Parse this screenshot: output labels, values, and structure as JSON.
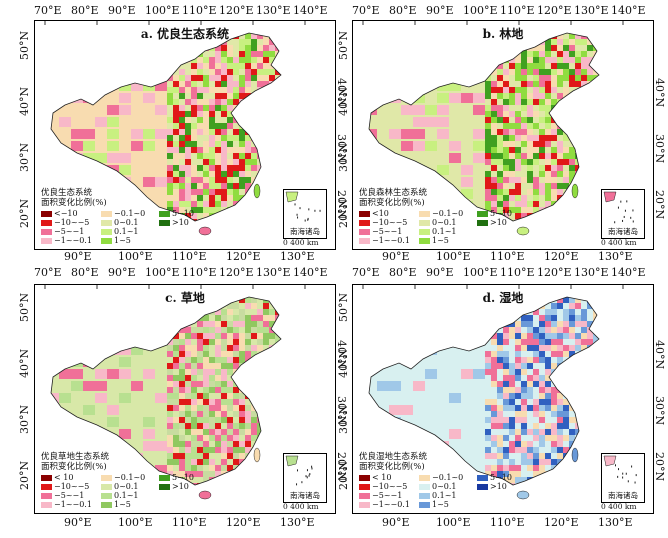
{
  "axes": {
    "top_lon": [
      "70°E",
      "80°E",
      "90°E",
      "100°E",
      "110°E",
      "120°E",
      "130°E",
      "140°E"
    ],
    "bottom_lon": [
      "90°E",
      "100°E",
      "110°E",
      "120°E",
      "130°E"
    ],
    "lat_left": [
      "50°N",
      "40°N",
      "30°N",
      "20°N"
    ],
    "lat_right": [
      "40°N",
      "30°N",
      "20°N"
    ]
  },
  "inset": {
    "label": "南海诸岛",
    "scale": "0  400 km"
  },
  "panels": [
    {
      "title": "a. 优良生态系统",
      "legend_title": [
        "优良生态系统",
        "面积变化比例(%)"
      ],
      "legend_items": [
        {
          "label": "<−10",
          "color": "#8b0000"
        },
        {
          "label": "−10~−5",
          "color": "#e01818"
        },
        {
          "label": "−5~−1",
          "color": "#f07098"
        },
        {
          "label": "−1~−0.1",
          "color": "#f8b8c8"
        },
        {
          "label": "−0.1~0",
          "color": "#f8dcb0"
        },
        {
          "label": "0~0.1",
          "color": "#e0e8a8"
        },
        {
          "label": "0.1~1",
          "color": "#c8f080"
        },
        {
          "label": "1~5",
          "color": "#90dc40"
        },
        {
          "label": "5~10",
          "color": "#40a020"
        },
        {
          "label": ">10",
          "color": "#207010"
        }
      ],
      "palette": [
        "#f8dcb0",
        "#f8b8c8",
        "#f07098",
        "#c8f080",
        "#90dc40",
        "#e0e8a8",
        "#40a020",
        "#e01818"
      ]
    },
    {
      "title": "b. 林地",
      "legend_title": [
        "优良森林生态系统",
        "面积变化比例(%)"
      ],
      "legend_items": [
        {
          "label": "<10",
          "color": "#8b0000"
        },
        {
          "label": "−10~−5",
          "color": "#e01818"
        },
        {
          "label": "−5~−1",
          "color": "#f07098"
        },
        {
          "label": "−1~−0.1",
          "color": "#f8b8c8"
        },
        {
          "label": "−0.1~0",
          "color": "#f8dcb0"
        },
        {
          "label": "0~0.1",
          "color": "#e0e8a8"
        },
        {
          "label": "0.1~1",
          "color": "#c8f080"
        },
        {
          "label": "1~5",
          "color": "#90dc40"
        },
        {
          "label": "5~10",
          "color": "#40a020"
        },
        {
          "label": ">10",
          "color": "#207010"
        }
      ],
      "palette": [
        "#e0e8a8",
        "#f8b8c8",
        "#c8f080",
        "#f07098",
        "#90dc40",
        "#f8dcb0",
        "#40a020",
        "#e01818"
      ]
    },
    {
      "title": "c. 草地",
      "legend_title": [
        "优良草地生态系统",
        "面积变化比例(%)"
      ],
      "legend_items": [
        {
          "label": "< 10",
          "color": "#8b0000"
        },
        {
          "label": "−10~−5",
          "color": "#e01818"
        },
        {
          "label": "−5~−1",
          "color": "#f07098"
        },
        {
          "label": "−1~−0.1",
          "color": "#f8b8c8"
        },
        {
          "label": "−0.1~0",
          "color": "#f8dcb0"
        },
        {
          "label": "0~0.1",
          "color": "#d8e8a8"
        },
        {
          "label": "0.1~1",
          "color": "#b8e090"
        },
        {
          "label": "1~5",
          "color": "#90c860"
        },
        {
          "label": "5~10",
          "color": "#40a020"
        },
        {
          "label": ">10",
          "color": "#207010"
        }
      ],
      "palette": [
        "#d8e8a8",
        "#f8b8c8",
        "#f07098",
        "#b8e090",
        "#f8dcb0",
        "#e01818",
        "#90c860",
        "#c8dca0"
      ]
    },
    {
      "title": "d. 湿地",
      "legend_title": [
        "优良湿地生态系统",
        "面积变化比例(%)"
      ],
      "legend_items": [
        {
          "label": "< 10",
          "color": "#8b0000"
        },
        {
          "label": "−10~−5",
          "color": "#e01818"
        },
        {
          "label": "−5~−1",
          "color": "#f07098"
        },
        {
          "label": "−1~−0.1",
          "color": "#f8b8c8"
        },
        {
          "label": "−0.1~0",
          "color": "#f8dcb0"
        },
        {
          "label": "0~0.1",
          "color": "#d8f0f0"
        },
        {
          "label": "0.1~1",
          "color": "#a0c8e8"
        },
        {
          "label": "1~5",
          "color": "#6898d8"
        },
        {
          "label": "5~10",
          "color": "#3060c0"
        },
        {
          "label": ">10",
          "color": "#1838a0"
        }
      ],
      "palette": [
        "#d8f0f0",
        "#d8f0f0",
        "#a0c8e8",
        "#f8b8c8",
        "#6898d8",
        "#f07098",
        "#3060c0",
        "#f8dcb0"
      ]
    }
  ]
}
